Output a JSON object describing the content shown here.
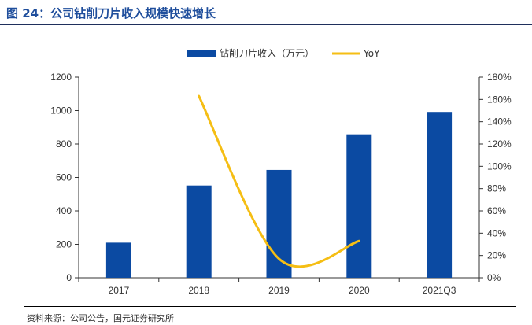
{
  "figure": {
    "title": "图 24：公司钻削刀片收入规模快速增长",
    "source": "资料来源：公司公告，国元证券研究所"
  },
  "colors": {
    "bar": "#0b4aa2",
    "line": "#f5be14",
    "title": "#1f4e9c"
  },
  "chart_data": {
    "type": "bar",
    "categories": [
      "2017",
      "2018",
      "2019",
      "2020",
      "2021Q3"
    ],
    "series": [
      {
        "name": "钻削刀片收入（万元）",
        "type": "bar",
        "axis": "left",
        "values": [
          210,
          552,
          645,
          858,
          992
        ]
      },
      {
        "name": "YoY",
        "type": "line",
        "axis": "right",
        "values": [
          null,
          163,
          17,
          33,
          null
        ]
      }
    ],
    "y_left": {
      "ticks": [
        "0",
        "200",
        "400",
        "600",
        "800",
        "1000",
        "1200"
      ],
      "lim": [
        0,
        1200
      ]
    },
    "y_right": {
      "ticks": [
        "0%",
        "20%",
        "40%",
        "60%",
        "80%",
        "100%",
        "120%",
        "140%",
        "160%",
        "180%"
      ],
      "lim": [
        0,
        180
      ]
    },
    "legend": "top-center",
    "grid": false
  }
}
